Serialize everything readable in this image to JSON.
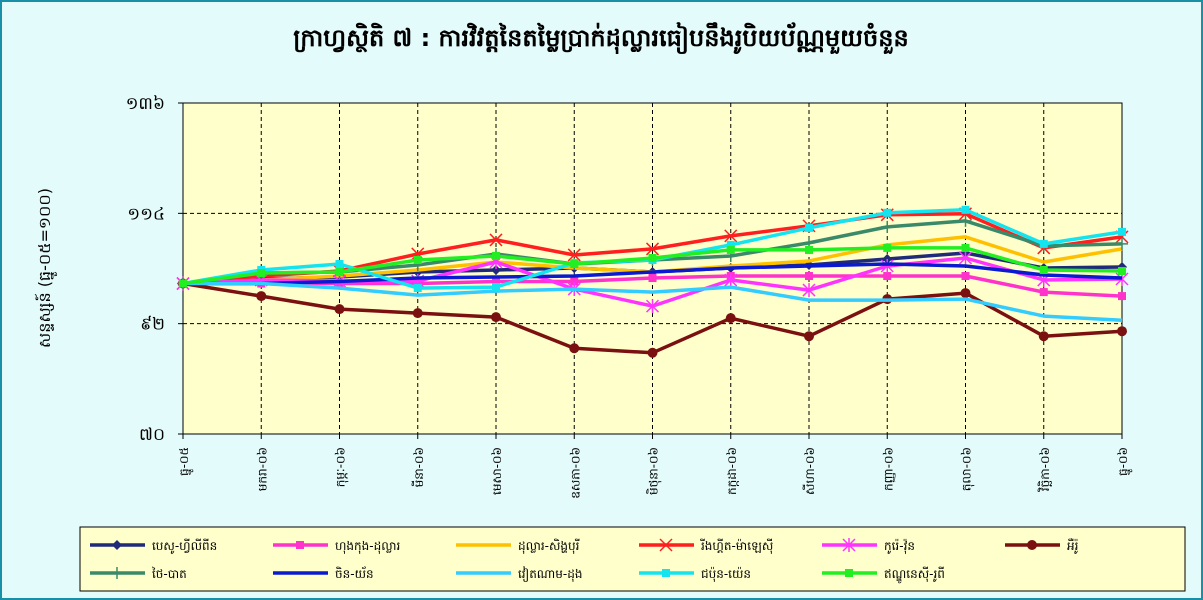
{
  "chart_data": {
    "type": "line",
    "title": "ក្រាហ្វស្ថិតិ ៧ : ការវិវត្តនៃតម្លៃប្រាក់ដុល្លារធៀបនឹងរូបិយប័ណ្ណមួយចំនួន",
    "ylabel": "សន្ទស្សន៍ (ធ្នូ-០៥=១០០)",
    "categories": [
      "ធ្នូ-០៥",
      "មករា-០៦",
      "កុម្ភៈ-០៦",
      "មីនា-០៦",
      "មេសា-០៦",
      "ឧសភា-០៦",
      "មិថុនា-០៦",
      "កក្កដា-០៦",
      "សីហា-០៦",
      "កញ្ញា-០៦",
      "តុលា-០៦",
      "វិច្ឆិកា-០៦",
      "ធ្នូ-០៦"
    ],
    "ylim": [
      70,
      136
    ],
    "yticks": [
      {
        "value": 70,
        "label": "៧០"
      },
      {
        "value": 92,
        "label": "៩២"
      },
      {
        "value": 114,
        "label": "១១៤"
      },
      {
        "value": 136,
        "label": "១៣៦"
      }
    ],
    "grid": true,
    "series": [
      {
        "name": "បេសូ-ហ្វីលីពីន",
        "color": "#1f2a7a",
        "marker": "diamond",
        "values": [
          100,
          100.9,
          101.3,
          102.3,
          102.7,
          103.1,
          102.3,
          103.1,
          103.7,
          104.9,
          106.1,
          103.1,
          103.3
        ]
      },
      {
        "name": "ហុងកុង-ដុល្លារ",
        "color": "#ff33cc",
        "marker": "square",
        "values": [
          100,
          100,
          100,
          100,
          100.4,
          100.4,
          101.1,
          101.5,
          101.5,
          101.5,
          101.5,
          98.3,
          97.5
        ]
      },
      {
        "name": "ដុល្លារ-សិង្ហបុរី",
        "color": "#ffc000",
        "marker": "none",
        "values": [
          100,
          100.7,
          101.5,
          102.7,
          104.3,
          103.1,
          102.3,
          103.5,
          104.5,
          107.7,
          109.3,
          104.3,
          106.9
        ]
      },
      {
        "name": "រីងហ្គីត-ម៉ាឡេស៊ី",
        "color": "#ff1f1f",
        "marker": "x",
        "values": [
          100,
          101.5,
          102.5,
          105.9,
          108.7,
          105.7,
          106.9,
          109.5,
          111.5,
          113.7,
          113.9,
          107.1,
          109.3
        ]
      },
      {
        "name": "កូរ៉េ-វ៉ុន",
        "color": "#ff33ff",
        "marker": "star",
        "values": [
          100,
          100.7,
          100.5,
          100.5,
          104.3,
          98.9,
          95.5,
          100.7,
          98.7,
          103.5,
          105.1,
          100.7,
          100.9
        ]
      },
      {
        "name": "អឺរ៉ូ",
        "color": "#7a1010",
        "marker": "circle",
        "values": [
          100,
          97.5,
          94.9,
          94.1,
          93.3,
          87.1,
          86.2,
          93.1,
          89.5,
          96.9,
          98.1,
          89.5,
          90.5
        ]
      },
      {
        "name": "ថៃ-បាត",
        "color": "#3a8a6a",
        "marker": "plus",
        "values": [
          100,
          102.1,
          102.3,
          103.7,
          105.9,
          103.9,
          104.7,
          105.5,
          108.1,
          111.3,
          112.5,
          107.5,
          107.9
        ]
      },
      {
        "name": "ចិន-យ័ន",
        "color": "#0a1ad0",
        "marker": "none",
        "values": [
          100,
          100,
          100.4,
          101.1,
          101.3,
          101.5,
          102.3,
          103.1,
          103.5,
          103.9,
          103.5,
          101.7,
          101.1
        ]
      },
      {
        "name": "វៀតណាម-ដុង",
        "color": "#33ccff",
        "marker": "none",
        "values": [
          100,
          100,
          99.1,
          97.7,
          98.5,
          98.9,
          98.3,
          99.3,
          96.7,
          96.7,
          96.9,
          93.5,
          92.7
        ]
      },
      {
        "name": "ជប៉ុន-យ៉េន",
        "color": "#14e4f0",
        "marker": "square",
        "values": [
          100,
          102.7,
          103.9,
          99.1,
          99.3,
          104.1,
          104.7,
          107.7,
          111.1,
          114.1,
          114.7,
          107.9,
          110.3
        ]
      },
      {
        "name": "ឥណ្ឌូនេស៊ី-រូពី",
        "color": "#22ee22",
        "marker": "square",
        "values": [
          100,
          102.1,
          102.3,
          104.7,
          105.5,
          103.9,
          105.1,
          106.7,
          106.7,
          107.1,
          107.1,
          102.7,
          102.5
        ]
      }
    ]
  }
}
